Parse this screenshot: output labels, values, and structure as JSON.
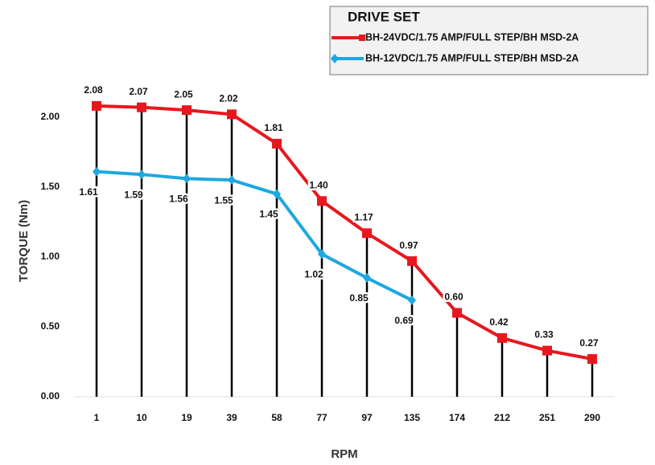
{
  "chart_data": {
    "type": "line",
    "legend_title": "DRIVE SET",
    "ylabel": "TORQUE (Nm)",
    "xlabel": "RPM",
    "categories": [
      "1",
      "10",
      "19",
      "39",
      "58",
      "77",
      "97",
      "135",
      "174",
      "212",
      "251",
      "290"
    ],
    "series": [
      {
        "name": "BH-24VDC/1.75 AMP/FULL STEP/BH MSD-2A",
        "color": "#e8171f",
        "marker": "square",
        "values": [
          2.08,
          2.07,
          2.05,
          2.02,
          1.81,
          1.4,
          1.17,
          0.97,
          0.6,
          0.42,
          0.33,
          0.27
        ],
        "value_labels": [
          "2.08",
          "2.07",
          "2.05",
          "2.02",
          "1.81",
          "1.40",
          "1.17",
          "0.97",
          "0.60",
          "0.42",
          "0.33",
          "0.27"
        ]
      },
      {
        "name": "BH-12VDC/1.75 AMP/FULL STEP/BH MSD-2A",
        "color": "#1ea7e1",
        "marker": "diamond",
        "values": [
          1.61,
          1.59,
          1.56,
          1.55,
          1.45,
          1.02,
          0.85,
          0.69,
          null,
          null,
          null,
          null
        ]
      }
    ],
    "ylim": [
      0,
      2.2
    ],
    "yticks": [
      {
        "value": 0,
        "label": "0.00"
      },
      {
        "value": 0.5,
        "label": "0.50"
      },
      {
        "value": 1,
        "label": "1.00"
      },
      {
        "value": 1.5,
        "label": "1.50"
      },
      {
        "value": 2,
        "label": "2.00"
      }
    ],
    "drop_lines": true,
    "legend_position": "upper right"
  }
}
